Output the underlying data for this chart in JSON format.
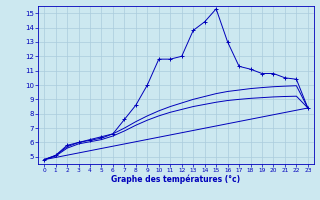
{
  "xlabel": "Graphe des températures (°c)",
  "bg_color": "#cce8f0",
  "line_color": "#0000bb",
  "grid_color": "#aaccdd",
  "ylim": [
    4.5,
    15.5
  ],
  "xlim": [
    -0.5,
    23.5
  ],
  "yticks": [
    5,
    6,
    7,
    8,
    9,
    10,
    11,
    12,
    13,
    14,
    15
  ],
  "xticks": [
    0,
    1,
    2,
    3,
    4,
    5,
    6,
    7,
    8,
    9,
    10,
    11,
    12,
    13,
    14,
    15,
    16,
    17,
    18,
    19,
    20,
    21,
    22,
    23
  ],
  "line1_x": [
    0,
    1,
    2,
    3,
    4,
    5,
    6,
    7,
    8,
    9,
    10,
    11,
    12,
    13,
    14,
    15,
    16,
    17,
    18,
    19,
    20,
    21,
    22,
    23
  ],
  "line1_y": [
    4.8,
    5.1,
    5.8,
    6.0,
    6.2,
    6.4,
    6.6,
    7.6,
    8.6,
    10.0,
    11.8,
    11.8,
    12.0,
    13.8,
    14.4,
    15.3,
    13.0,
    11.3,
    11.1,
    10.8,
    10.8,
    10.5,
    10.4,
    8.4
  ],
  "line2_x": [
    0,
    23
  ],
  "line2_y": [
    4.8,
    8.4
  ],
  "line3_x": [
    0,
    1,
    2,
    3,
    4,
    5,
    6,
    7,
    8,
    9,
    10,
    11,
    12,
    13,
    14,
    15,
    16,
    17,
    18,
    19,
    20,
    21,
    22,
    23
  ],
  "line3_y": [
    4.8,
    5.1,
    5.7,
    6.0,
    6.15,
    6.3,
    6.6,
    7.0,
    7.45,
    7.85,
    8.2,
    8.5,
    8.75,
    9.0,
    9.2,
    9.4,
    9.55,
    9.65,
    9.75,
    9.82,
    9.88,
    9.92,
    9.95,
    8.4
  ],
  "line4_x": [
    0,
    1,
    2,
    3,
    4,
    5,
    6,
    7,
    8,
    9,
    10,
    11,
    12,
    13,
    14,
    15,
    16,
    17,
    18,
    19,
    20,
    21,
    22,
    23
  ],
  "line4_y": [
    4.8,
    5.05,
    5.6,
    5.9,
    6.05,
    6.2,
    6.45,
    6.8,
    7.2,
    7.55,
    7.85,
    8.1,
    8.3,
    8.5,
    8.65,
    8.8,
    8.92,
    9.0,
    9.07,
    9.12,
    9.17,
    9.2,
    9.22,
    8.4
  ]
}
